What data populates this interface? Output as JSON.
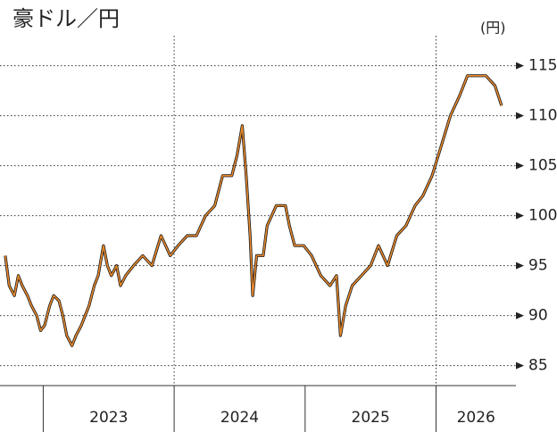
{
  "chart_data": {
    "type": "line",
    "title": "豪ドル／円",
    "y_unit_label": "(円)",
    "x": [
      2022.71,
      2022.74,
      2022.78,
      2022.81,
      2022.84,
      2022.88,
      2022.91,
      2022.95,
      2022.98,
      2023.01,
      2023.05,
      2023.08,
      2023.12,
      2023.15,
      2023.18,
      2023.22,
      2023.25,
      2023.29,
      2023.32,
      2023.35,
      2023.39,
      2023.42,
      2023.46,
      2023.49,
      2023.52,
      2023.56,
      2023.59,
      2023.63,
      2023.69,
      2023.76,
      2023.83,
      2023.9,
      2023.97,
      2024.03,
      2024.1,
      2024.17,
      2024.24,
      2024.31,
      2024.37,
      2024.44,
      2024.48,
      2024.52,
      2024.55,
      2024.58,
      2024.6,
      2024.63,
      2024.68,
      2024.71,
      2024.78,
      2024.85,
      2024.88,
      2024.92,
      2024.99,
      2025.05,
      2025.12,
      2025.19,
      2025.24,
      2025.27,
      2025.31,
      2025.36,
      2025.43,
      2025.5,
      2025.56,
      2025.63,
      2025.7,
      2025.77,
      2025.84,
      2025.9,
      2025.97,
      2026.04,
      2026.11,
      2026.18,
      2026.24,
      2026.31,
      2026.38,
      2026.45,
      2026.5
    ],
    "series": [
      {
        "name": "豪ドル／円",
        "color": "#e8892c",
        "values": [
          96,
          93,
          92,
          94,
          93,
          92,
          91,
          90,
          88.5,
          89,
          91,
          92,
          91.5,
          90,
          88,
          87,
          88,
          89,
          90,
          91,
          93,
          94,
          97,
          95,
          94,
          95,
          93,
          94,
          95,
          96,
          95,
          98,
          96,
          97,
          98,
          98,
          100,
          101,
          104,
          104,
          106,
          109,
          104,
          98,
          92,
          96,
          96,
          99,
          101,
          101,
          99,
          97,
          97,
          96,
          94,
          93,
          94,
          88,
          91,
          93,
          94,
          95,
          97,
          95,
          98,
          99,
          101,
          102,
          104,
          107,
          110,
          112,
          114,
          114,
          114,
          113,
          111
        ]
      }
    ],
    "xlim": [
      2022.67,
      2026.61
    ],
    "xticks": [
      {
        "value": 2023,
        "label": "2023"
      },
      {
        "value": 2024,
        "label": "2024"
      },
      {
        "value": 2025,
        "label": "2025"
      },
      {
        "value": 2026,
        "label": "2026"
      }
    ],
    "ylim": [
      83,
      118
    ],
    "yticks": [
      85,
      90,
      95,
      100,
      105,
      110,
      115
    ],
    "grid": true
  }
}
